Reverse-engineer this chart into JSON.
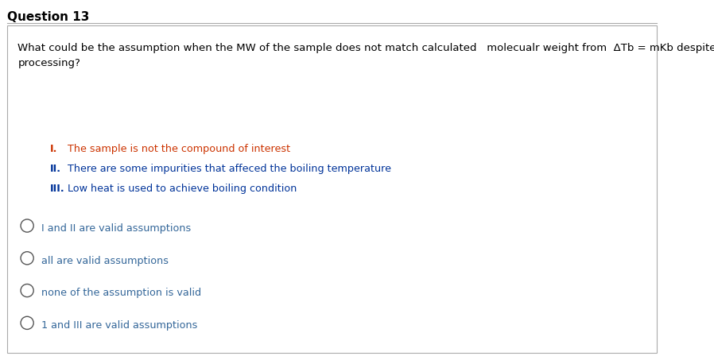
{
  "title": "Question 13",
  "title_fontsize": 11,
  "title_fontweight": "bold",
  "bg_color": "#ffffff",
  "question_text": "What could be the assumption when the MW of the sample does not match calculated   molecualr weight from  ΔTb = mKb despite careful data\nprocessing?",
  "question_color": "#000000",
  "question_fontsize": 9.5,
  "items": [
    {
      "label": "I.",
      "text": " The sample is not the compound of interest",
      "color": "#cc3300"
    },
    {
      "label": "II.",
      "text": " There are some impurities that affeced the boiling temperature",
      "color": "#003399"
    },
    {
      "label": "III.",
      "text": " Low heat is used to achieve boiling condition",
      "color": "#003399"
    }
  ],
  "options": [
    "I and II are valid assumptions",
    "all are valid assumptions",
    "none of the assumption is valid",
    "1 and III are valid assumptions"
  ],
  "options_color": "#336699"
}
